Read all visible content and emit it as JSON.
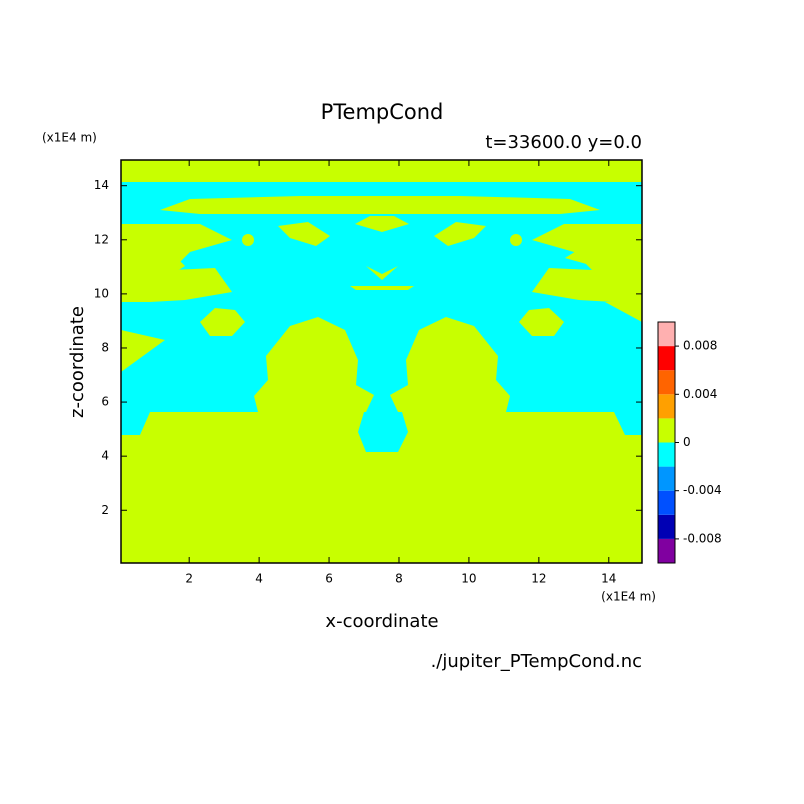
{
  "chart_data": {
    "type": "contour",
    "title": "PTempCond",
    "subtitle": "t=33600.0 y=0.0",
    "x_label": "x-coordinate",
    "y_label": "z-coordinate",
    "x_unit": "(x1E4 m)",
    "y_unit": "(x1E4 m)",
    "source": "./jupiter_PTempCond.nc",
    "xlim": [
      0.05,
      14.95
    ],
    "ylim": [
      0.05,
      14.95
    ],
    "xticks": [
      2,
      4,
      6,
      8,
      10,
      12,
      14
    ],
    "yticks": [
      2,
      4,
      6,
      8,
      10,
      12,
      14
    ],
    "colorbar": {
      "levels": [
        -0.01,
        -0.008,
        -0.006,
        -0.004,
        -0.002,
        0,
        0.002,
        0.004,
        0.006,
        0.008,
        0.01
      ],
      "colors": [
        "#8000a0",
        "#0000b4",
        "#0050ff",
        "#0096ff",
        "#00ffff",
        "#c8ff00",
        "#ffa000",
        "#ff6400",
        "#ff0000",
        "#ffb0b0"
      ],
      "ticks": [
        -0.008,
        -0.004,
        0,
        0.004,
        0.008
      ]
    }
  }
}
